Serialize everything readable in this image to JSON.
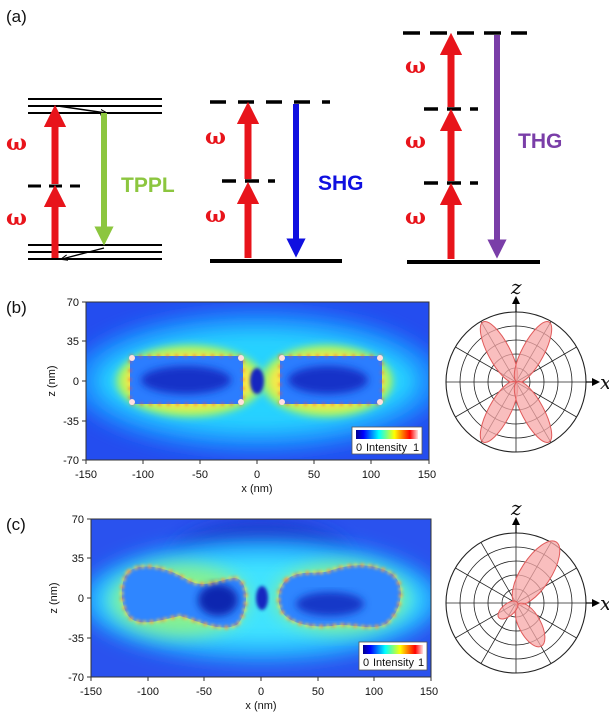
{
  "panels": {
    "a": "(a)",
    "b": "(b)",
    "c": "(c)"
  },
  "energy_diagram": {
    "omega_symbol": "ω",
    "processes": [
      {
        "label": "TPPL",
        "color": "#8cc63f"
      },
      {
        "label": "SHG",
        "color": "#1010e0"
      },
      {
        "label": "THG",
        "color": "#7a3ea8"
      }
    ],
    "excitation_color": "#e8141b"
  },
  "field_maps": {
    "x_label": "x (nm)",
    "z_label": "z (nm)",
    "x_ticks": [
      "-150",
      "-100",
      "-50",
      "0",
      "50",
      "100",
      "150"
    ],
    "z_ticks": [
      "70",
      "35",
      "0",
      "-35",
      "-70"
    ],
    "colorbar": {
      "min": "0",
      "label": "Intensity",
      "max": "1"
    }
  },
  "polar": {
    "z_label": "z",
    "x_label": "x"
  },
  "chart_data": [
    {
      "type": "heatmap",
      "panel": "(b)",
      "xlabel": "x (nm)",
      "ylabel": "z (nm)",
      "xlim": [
        -150,
        150
      ],
      "ylim": [
        -70,
        70
      ],
      "x_ticks": [
        -150,
        -100,
        -50,
        0,
        50,
        100,
        150
      ],
      "y_ticks": [
        70,
        35,
        0,
        -35,
        -70
      ],
      "structures": [
        {
          "shape": "rectangle",
          "x_range": [
            -110,
            -10
          ],
          "z_range": [
            -20,
            22
          ]
        },
        {
          "shape": "rectangle",
          "x_range": [
            20,
            110
          ],
          "z_range": [
            -20,
            22
          ]
        }
      ],
      "colorbar": {
        "label": "Intensity",
        "range": [
          0,
          1
        ]
      }
    },
    {
      "type": "heatmap",
      "panel": "(c)",
      "xlabel": "x (nm)",
      "ylabel": "z (nm)",
      "xlim": [
        -150,
        150
      ],
      "ylim": [
        -70,
        70
      ],
      "x_ticks": [
        -150,
        -100,
        -50,
        0,
        50,
        100,
        150
      ],
      "y_ticks": [
        70,
        35,
        0,
        -35,
        -70
      ],
      "structures": [
        {
          "shape": "irregular",
          "x_range": [
            -120,
            -15
          ],
          "z_range": [
            -25,
            28
          ]
        },
        {
          "shape": "irregular",
          "x_range": [
            15,
            120
          ],
          "z_range": [
            -20,
            28
          ]
        }
      ],
      "colorbar": {
        "label": "Intensity",
        "range": [
          0,
          1
        ]
      }
    },
    {
      "type": "polar",
      "panel": "(b) right",
      "pattern": "four-lobe",
      "lobe_angles_deg": [
        60,
        120,
        240,
        300
      ],
      "axes": [
        "x",
        "z"
      ]
    },
    {
      "type": "polar",
      "panel": "(c) right",
      "pattern": "asymmetric two-lobe",
      "lobe_angles_deg": [
        60,
        240
      ],
      "major_lobe_angle_deg": 60,
      "axes": [
        "x",
        "z"
      ]
    }
  ]
}
